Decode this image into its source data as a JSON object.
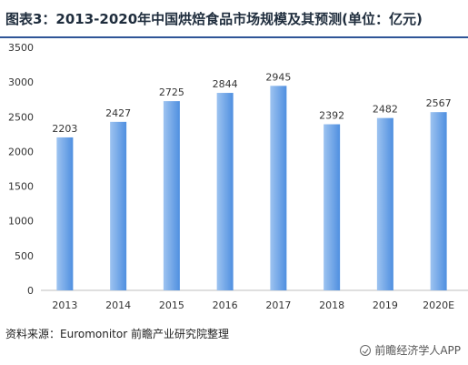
{
  "header": {
    "title": "图表3：2013-2020年中国烘焙食品市场规模及其预测(单位：亿元)"
  },
  "footer": {
    "source": "资料来源：Euromonitor 前瞻产业研究院整理",
    "brand": "前瞻经济学人APP"
  },
  "colors": {
    "bar_light": "#9dc3f0",
    "bar_dark": "#4f8fe0",
    "axis": "#bfbfbf",
    "text": "#333333"
  },
  "chart_data": {
    "type": "bar",
    "title": "图表3：2013-2020年中国烘焙食品市场规模及其预测(单位：亿元)",
    "xlabel": "",
    "ylabel": "",
    "categories": [
      "2013",
      "2014",
      "2015",
      "2016",
      "2017",
      "2018",
      "2019",
      "2020E"
    ],
    "values": [
      2203,
      2427,
      2725,
      2844,
      2945,
      2392,
      2482,
      2567
    ],
    "ylim": [
      0,
      3500
    ],
    "yticks": [
      0,
      500,
      1000,
      1500,
      2000,
      2500,
      3000,
      3500
    ],
    "grid": false,
    "data_labels": true
  }
}
